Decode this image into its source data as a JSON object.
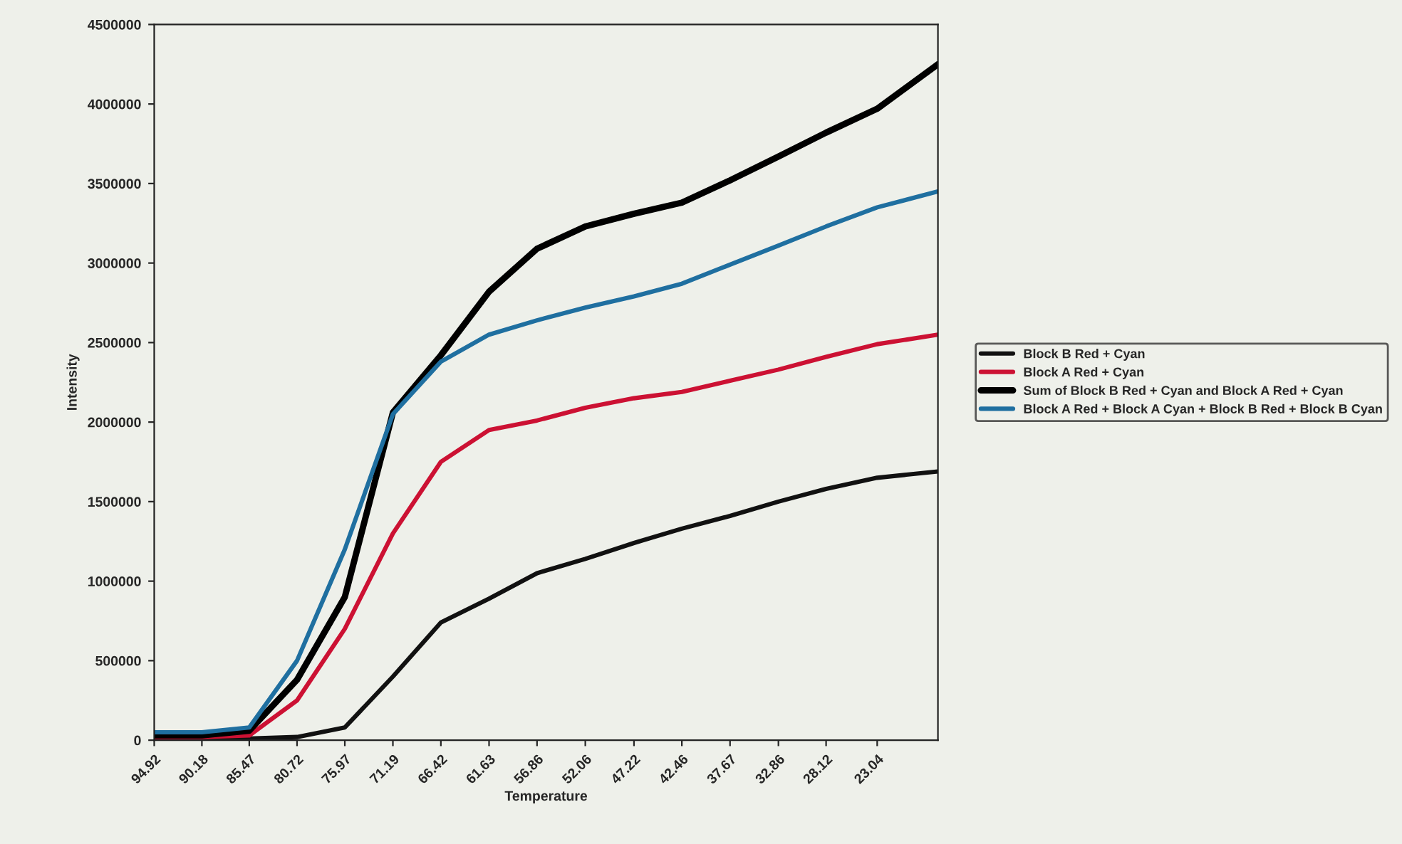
{
  "chart_data": {
    "type": "line",
    "xlabel": "Temperature",
    "ylabel": "Intensity",
    "x": [
      94.92,
      90.18,
      85.47,
      80.72,
      75.97,
      71.19,
      66.42,
      61.63,
      56.86,
      52.06,
      47.22,
      42.46,
      37.67,
      32.86,
      28.12,
      23.04,
      17.0
    ],
    "series": [
      {
        "name": "Block B Red + Cyan",
        "color": "#111111",
        "values": [
          10000,
          10000,
          10000,
          20000,
          80000,
          400000,
          740000,
          890000,
          1050000,
          1140000,
          1240000,
          1330000,
          1410000,
          1500000,
          1580000,
          1650000,
          1690000
        ]
      },
      {
        "name": "Block A Red + Cyan",
        "color": "#cc1133",
        "values": [
          20000,
          20000,
          30000,
          250000,
          700000,
          1300000,
          1750000,
          1950000,
          2010000,
          2090000,
          2150000,
          2190000,
          2260000,
          2330000,
          2410000,
          2490000,
          2550000
        ]
      },
      {
        "name": "Sum of Block B Red + Cyan and Block A Red + Cyan",
        "color": "#000000",
        "values": [
          30000,
          30000,
          60000,
          380000,
          900000,
          2060000,
          2420000,
          2820000,
          3090000,
          3230000,
          3310000,
          3380000,
          3520000,
          3670000,
          3820000,
          3970000,
          4250000
        ]
      },
      {
        "name": "Block A Red + Block A Cyan + Block B Red + Block B Cyan",
        "color": "#1f6fa0",
        "values": [
          50000,
          50000,
          80000,
          500000,
          1200000,
          2050000,
          2380000,
          2550000,
          2640000,
          2720000,
          2790000,
          2870000,
          2990000,
          3110000,
          3230000,
          3350000,
          3450000
        ]
      }
    ],
    "xlim": [
      94.92,
      17.0
    ],
    "xticks": [
      94.92,
      90.18,
      85.47,
      80.72,
      75.97,
      71.19,
      66.42,
      61.63,
      56.86,
      52.06,
      47.22,
      42.46,
      37.67,
      32.86,
      28.12,
      23.04
    ],
    "ylim": [
      0,
      4500000
    ],
    "yticks": [
      0,
      500000,
      1000000,
      1500000,
      2000000,
      2500000,
      3000000,
      3500000,
      4000000,
      4500000
    ],
    "grid": false,
    "legend": "right",
    "marker": "none",
    "line_style": "solid"
  }
}
